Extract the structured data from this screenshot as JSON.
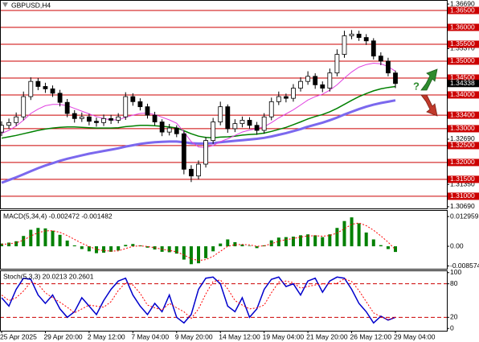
{
  "chart_data": [
    {
      "type": "candlestick",
      "title": "GBPUSD,H4",
      "categories": [
        "25 Apr 2025",
        null,
        null,
        null,
        null,
        null,
        "29 Apr 20:00",
        null,
        null,
        null,
        null,
        null,
        "2 May 12:00",
        null,
        null,
        null,
        null,
        null,
        "7 May 04:00",
        null,
        null,
        null,
        null,
        null,
        "9 May 20:00",
        null,
        null,
        null,
        null,
        null,
        "14 May 12:00",
        null,
        null,
        null,
        null,
        null,
        "19 May 04:00",
        null,
        null,
        null,
        null,
        null,
        "21 May 20:00",
        null,
        null,
        null,
        null,
        null,
        "26 May 12:00",
        null,
        null,
        null,
        null,
        null,
        "29 May 04:00"
      ],
      "open": [
        1.329,
        1.331,
        1.3318,
        1.3335,
        1.3395,
        1.344,
        1.3425,
        1.3418,
        1.3405,
        1.3378,
        1.3345,
        1.333,
        1.3335,
        1.3322,
        1.3318,
        1.333,
        1.3325,
        1.3335,
        1.3395,
        1.338,
        1.3365,
        1.334,
        1.332,
        1.329,
        1.3302,
        1.3285,
        1.318,
        1.316,
        1.3195,
        1.3265,
        1.332,
        1.3365,
        1.33,
        1.3315,
        1.3325,
        1.331,
        1.3295,
        1.3335,
        1.338,
        1.3395,
        1.339,
        1.342,
        1.344,
        1.3455,
        1.343,
        1.342,
        1.3465,
        1.352,
        1.3575,
        1.358,
        1.357,
        1.356,
        1.3515,
        1.35,
        1.3465
      ],
      "high": [
        1.3322,
        1.333,
        1.3348,
        1.341,
        1.3452,
        1.345,
        1.3436,
        1.3428,
        1.3415,
        1.3388,
        1.3355,
        1.3348,
        1.3344,
        1.3333,
        1.3342,
        1.3341,
        1.3346,
        1.3408,
        1.3405,
        1.339,
        1.3374,
        1.335,
        1.3328,
        1.3314,
        1.331,
        1.3292,
        1.3192,
        1.3206,
        1.3275,
        1.3332,
        1.338,
        1.3372,
        1.3328,
        1.3336,
        1.3334,
        1.332,
        1.3346,
        1.3392,
        1.341,
        1.3404,
        1.3432,
        1.3452,
        1.347,
        1.3464,
        1.344,
        1.3478,
        1.3535,
        1.359,
        1.3592,
        1.359,
        1.358,
        1.3568,
        1.3526,
        1.351,
        1.3472
      ],
      "low": [
        1.3278,
        1.33,
        1.3308,
        1.3325,
        1.3385,
        1.3414,
        1.3406,
        1.3394,
        1.3366,
        1.3334,
        1.3318,
        1.332,
        1.331,
        1.3306,
        1.3308,
        1.3314,
        1.3316,
        1.3326,
        1.3368,
        1.3354,
        1.333,
        1.331,
        1.3278,
        1.328,
        1.3275,
        1.3165,
        1.3142,
        1.315,
        1.3185,
        1.3255,
        1.331,
        1.3288,
        1.329,
        1.3304,
        1.33,
        1.3282,
        1.3285,
        1.3325,
        1.337,
        1.3378,
        1.338,
        1.341,
        1.343,
        1.3418,
        1.3408,
        1.341,
        1.3455,
        1.351,
        1.3565,
        1.356,
        1.3548,
        1.3505,
        1.3488,
        1.3455,
        1.342
      ],
      "close": [
        1.331,
        1.3318,
        1.3335,
        1.3395,
        1.344,
        1.3425,
        1.3418,
        1.3405,
        1.3378,
        1.3345,
        1.333,
        1.3335,
        1.3322,
        1.3318,
        1.333,
        1.3325,
        1.3335,
        1.3395,
        1.338,
        1.3365,
        1.334,
        1.332,
        1.329,
        1.3302,
        1.3285,
        1.318,
        1.316,
        1.3195,
        1.3265,
        1.332,
        1.3365,
        1.33,
        1.3315,
        1.3325,
        1.331,
        1.3295,
        1.3335,
        1.338,
        1.3395,
        1.339,
        1.342,
        1.344,
        1.3455,
        1.343,
        1.342,
        1.3465,
        1.352,
        1.3575,
        1.358,
        1.357,
        1.356,
        1.3515,
        1.35,
        1.3465,
        1.34338
      ],
      "up_color": "#ffffff",
      "down_color": "#000000",
      "moving_averages": [
        {
          "color": "#7b68ee",
          "width": 3,
          "values": [
            1.314,
            1.3148,
            1.3156,
            1.3165,
            1.3174,
            1.3183,
            1.3191,
            1.3198,
            1.3205,
            1.3211,
            1.3216,
            1.3221,
            1.3226,
            1.323,
            1.3234,
            1.3238,
            1.3242,
            1.3247,
            1.3251,
            1.3255,
            1.3258,
            1.326,
            1.3261,
            1.3262,
            1.3262,
            1.326,
            1.3257,
            1.3256,
            1.3256,
            1.3257,
            1.326,
            1.3262,
            1.3264,
            1.3266,
            1.3268,
            1.327,
            1.3273,
            1.3277,
            1.3282,
            1.3287,
            1.3293,
            1.3299,
            1.3306,
            1.3312,
            1.3318,
            1.3325,
            1.3333,
            1.3342,
            1.335,
            1.3358,
            1.3365,
            1.3371,
            1.3376,
            1.338,
            1.3384
          ]
        },
        {
          "color": "#008000",
          "width": 1.5,
          "values": [
            1.3272,
            1.3276,
            1.328,
            1.3285,
            1.329,
            1.3295,
            1.3299,
            1.3302,
            1.3304,
            1.3305,
            1.3305,
            1.3304,
            1.3303,
            1.3302,
            1.3302,
            1.3302,
            1.3303,
            1.3306,
            1.3308,
            1.331,
            1.331,
            1.3309,
            1.3307,
            1.3305,
            1.3302,
            1.3294,
            1.3285,
            1.3278,
            1.3274,
            1.3273,
            1.3275,
            1.3276,
            1.3278,
            1.3281,
            1.3283,
            1.3284,
            1.3287,
            1.3292,
            1.3298,
            1.3304,
            1.3312,
            1.332,
            1.3329,
            1.3336,
            1.3342,
            1.335,
            1.336,
            1.3372,
            1.3384,
            1.3395,
            1.3404,
            1.3412,
            1.3418,
            1.3422,
            1.3425
          ]
        },
        {
          "color": "#e040e0",
          "width": 1,
          "values": [
            1.3286,
            1.3295,
            1.3308,
            1.3325,
            1.3345,
            1.3358,
            1.3368,
            1.3372,
            1.3372,
            1.3368,
            1.336,
            1.3352,
            1.3344,
            1.3336,
            1.333,
            1.3326,
            1.3326,
            1.3334,
            1.334,
            1.3345,
            1.3346,
            1.3342,
            1.3334,
            1.3326,
            1.3316,
            1.329,
            1.3262,
            1.3246,
            1.3244,
            1.325,
            1.3262,
            1.327,
            1.328,
            1.329,
            1.3296,
            1.33,
            1.3306,
            1.3318,
            1.3332,
            1.3344,
            1.3356,
            1.337,
            1.3385,
            1.3395,
            1.3402,
            1.3414,
            1.343,
            1.345,
            1.3468,
            1.3482,
            1.349,
            1.3494,
            1.3492,
            1.3484,
            1.347
          ]
        }
      ],
      "ylim": [
        1.3064,
        1.3681
      ],
      "yticks": [
        {
          "value": 1.3669,
          "label": "1.36690"
        },
        {
          "value": 1.3537,
          "label": "1.35370"
        },
        {
          "value": 1.3269,
          "label": "1.32690"
        },
        {
          "value": 1.3135,
          "label": "1.31350"
        },
        {
          "value": 1.3069,
          "label": "1.30690"
        }
      ],
      "levels": {
        "color": "#cc0000",
        "values": [
          {
            "value": 1.365,
            "label": "1.36500"
          },
          {
            "value": 1.36,
            "label": "1.36000"
          },
          {
            "value": 1.355,
            "label": "1.35500"
          },
          {
            "value": 1.35,
            "label": "1.35000"
          },
          {
            "value": 1.345,
            "label": "1.34500"
          },
          {
            "value": 1.34,
            "label": "1.34000"
          },
          {
            "value": 1.334,
            "label": "1.33400"
          },
          {
            "value": 1.33,
            "label": "1.33000"
          },
          {
            "value": 1.325,
            "label": "1.32500"
          },
          {
            "value": 1.32,
            "label": "1.32000"
          },
          {
            "value": 1.315,
            "label": "1.31500"
          },
          {
            "value": 1.31,
            "label": "1.31000"
          }
        ]
      },
      "last_price": {
        "value": 1.34338,
        "label": "1.34338"
      }
    },
    {
      "type": "bar",
      "title": "MACD(5,34,4) -0.002472 -0.001482",
      "color": "#008000",
      "values": [
        0.0012,
        0.0016,
        0.0022,
        0.0045,
        0.0072,
        0.008,
        0.0078,
        0.0068,
        0.005,
        0.0025,
        0.0004,
        -0.0012,
        -0.0022,
        -0.003,
        -0.0028,
        -0.0024,
        -0.0018,
        0.0006,
        0.001,
        0.0004,
        -0.0006,
        -0.0014,
        -0.0024,
        -0.0026,
        -0.0032,
        -0.0058,
        -0.0078,
        -0.0074,
        -0.0052,
        -0.0022,
        0.0012,
        0.003,
        0.0018,
        0.0008,
        0.0002,
        -0.0008,
        0.0004,
        0.0026,
        0.0038,
        0.004,
        0.0042,
        0.0048,
        0.0052,
        0.0048,
        0.004,
        0.0052,
        0.008,
        0.011,
        0.0126,
        0.01,
        0.006,
        0.003,
        0.0005,
        -0.0012,
        -0.002472
      ],
      "signal": {
        "color": "#ff0000",
        "style": "dotted",
        "values": [
          0.0008,
          0.0011,
          0.0015,
          0.0027,
          0.0045,
          0.0059,
          0.0067,
          0.0068,
          0.0061,
          0.0047,
          0.003,
          0.0013,
          -0.0001,
          -0.0013,
          -0.0019,
          -0.0021,
          -0.002,
          -0.001,
          0.0,
          0.0002,
          -0.0001,
          -0.0006,
          -0.0013,
          -0.0018,
          -0.0024,
          -0.0038,
          -0.0054,
          -0.0062,
          -0.0058,
          -0.0044,
          -0.0022,
          0.0,
          0.0007,
          0.0008,
          0.0006,
          0.0,
          0.0002,
          0.0011,
          0.0022,
          0.0029,
          0.0034,
          0.004,
          0.0045,
          0.0046,
          0.0044,
          0.0047,
          0.0058,
          0.0076,
          0.0096,
          0.0102,
          0.009,
          0.007,
          0.0045,
          0.0018,
          -0.001482
        ]
      },
      "ylim": [
        -0.0098,
        0.0158
      ],
      "yticks": [
        0.012959,
        {
          "value": 0,
          "label": "0.00"
        },
        -0.008574
      ]
    },
    {
      "type": "line",
      "title": "Stoch(5,3,3) 20.0213 20.2601",
      "series": [
        {
          "color": "#0000cc",
          "style": "solid",
          "values": [
            55,
            40,
            70,
            90,
            88,
            60,
            45,
            60,
            35,
            20,
            30,
            55,
            40,
            25,
            50,
            70,
            85,
            90,
            60,
            40,
            25,
            45,
            30,
            60,
            20,
            10,
            25,
            70,
            90,
            92,
            80,
            40,
            30,
            55,
            20,
            35,
            70,
            88,
            92,
            75,
            80,
            60,
            85,
            90,
            65,
            85,
            92,
            90,
            70,
            45,
            30,
            10,
            22,
            15,
            20.0213
          ]
        },
        {
          "color": "#ff0000",
          "style": "dotted",
          "values": [
            60,
            50,
            55,
            67,
            83,
            79,
            64,
            55,
            47,
            38,
            28,
            35,
            42,
            40,
            38,
            48,
            68,
            82,
            78,
            63,
            42,
            37,
            33,
            45,
            37,
            30,
            18,
            35,
            62,
            84,
            87,
            71,
            50,
            42,
            35,
            37,
            42,
            64,
            83,
            85,
            82,
            72,
            75,
            78,
            80,
            80,
            81,
            89,
            84,
            68,
            48,
            28,
            21,
            16,
            20.2601
          ]
        }
      ],
      "ylim": [
        -4,
        104
      ],
      "yticks": [
        100,
        80,
        20,
        0
      ],
      "levels": {
        "color": "#cc0000",
        "values": [
          80,
          20
        ]
      }
    }
  ]
}
